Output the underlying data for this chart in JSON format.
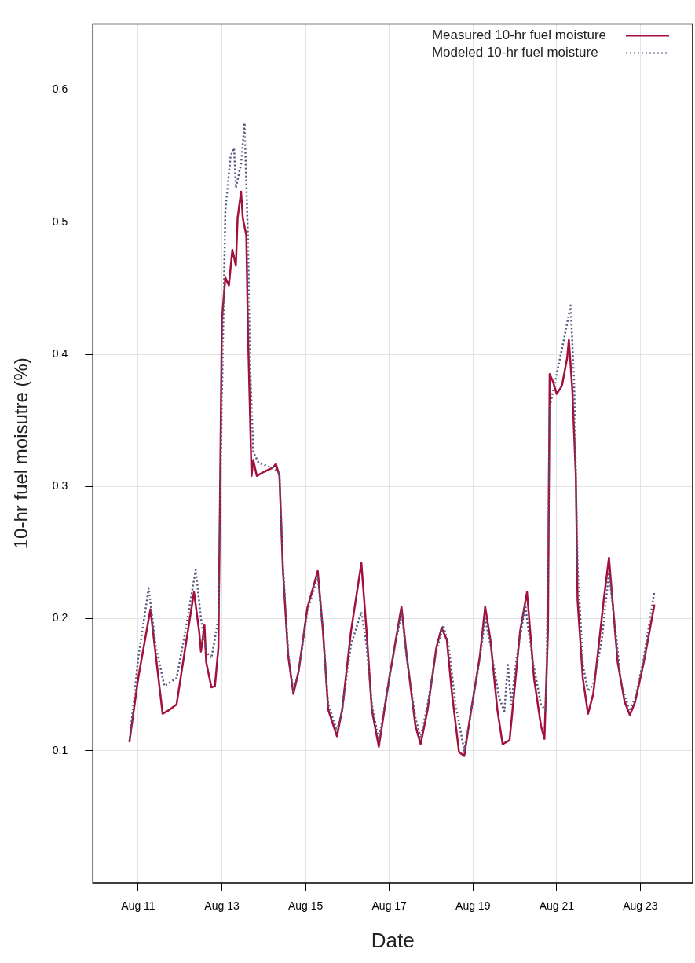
{
  "chart_data": {
    "type": "line",
    "xlabel": "Date",
    "ylabel": "10-hr fuel moisutre (%)",
    "xlim": [
      "--08-09T22:00",
      "--08-24T06:00"
    ],
    "xticks": [
      {
        "value": "--08-11",
        "label": "Aug 11"
      },
      {
        "value": "--08-13",
        "label": "Aug 13"
      },
      {
        "value": "--08-15",
        "label": "Aug 15"
      },
      {
        "value": "--08-17",
        "label": "Aug 17"
      },
      {
        "value": "--08-19",
        "label": "Aug 19"
      },
      {
        "value": "--08-21",
        "label": "Aug 21"
      },
      {
        "value": "--08-23",
        "label": "Aug 23"
      }
    ],
    "ylim": [
      0,
      0.65
    ],
    "yticks": [
      0.1,
      0.2,
      0.3,
      0.4,
      0.5,
      0.6
    ],
    "grid": true,
    "legend": "top right",
    "marker": "none",
    "series": [
      {
        "name": "Measured 10-hr fuel moisture",
        "color": "#a3103c",
        "line_style": "solid",
        "x": [
          "--08-10T19:00",
          "--08-11T00:00",
          "--08-11T07:00",
          "--08-11T14:00",
          "--08-11T18:00",
          "--08-11T22:00",
          "--08-12T03:00",
          "--08-12T08:00",
          "--08-12T11:00",
          "--08-12T12:00",
          "--08-12T14:00",
          "--08-12T15:00",
          "--08-12T18:00",
          "--08-12T20:00",
          "--08-12T22:00",
          "--08-13T00:00",
          "--08-13T02:00",
          "--08-13T04:00",
          "--08-13T06:00",
          "--08-13T08:00",
          "--08-13T09:00",
          "--08-13T11:00",
          "--08-13T12:00",
          "--08-13T14:00",
          "--08-13T15:00",
          "--08-13T17:00",
          "--08-13T18:00",
          "--08-13T20:00",
          "--08-14T00:00",
          "--08-14T05:00",
          "--08-14T07:00",
          "--08-14T09:00",
          "--08-14T11:00",
          "--08-14T14:00",
          "--08-14T17:00",
          "--08-14T20:00",
          "--08-15T01:00",
          "--08-15T07:00",
          "--08-15T10:00",
          "--08-15T13:00",
          "--08-15T18:00",
          "--08-15T21:00",
          "--08-16T02:00",
          "--08-16T08:00",
          "--08-16T11:00",
          "--08-16T14:00",
          "--08-16T18:00",
          "--08-17T00:00",
          "--08-17T07:00",
          "--08-17T10:00",
          "--08-17T15:00",
          "--08-17T18:00",
          "--08-17T22:00",
          "--08-18T03:00",
          "--08-18T06:00",
          "--08-18T09:00",
          "--08-18T12:00",
          "--08-18T16:00",
          "--08-18T19:00",
          "--08-18T23:00",
          "--08-19T04:00",
          "--08-19T07:00",
          "--08-19T10:00",
          "--08-19T14:00",
          "--08-19T17:00",
          "--08-19T21:00",
          "--08-20T00:00",
          "--08-20T03:00",
          "--08-20T07:00",
          "--08-20T11:00",
          "--08-20T15:00",
          "--08-20T17:00",
          "--08-20T19:00",
          "--08-20T20:00",
          "--08-20T22:00",
          "--08-21T00:00",
          "--08-21T03:00",
          "--08-21T06:00",
          "--08-21T07:00",
          "--08-21T09:00",
          "--08-21T11:00",
          "--08-21T12:00",
          "--08-21T15:00",
          "--08-21T18:00",
          "--08-21T21:00",
          "--08-22T00:00",
          "--08-22T03:00",
          "--08-22T06:00",
          "--08-22T08:00",
          "--08-22T11:00",
          "--08-22T15:00",
          "--08-22T18:00",
          "--08-22T21:00",
          "--08-23T02:00",
          "--08-23T08:00"
        ],
        "values": [
          0.107,
          0.155,
          0.207,
          0.128,
          0.131,
          0.135,
          0.178,
          0.22,
          0.19,
          0.175,
          0.195,
          0.167,
          0.148,
          0.149,
          0.178,
          0.426,
          0.458,
          0.452,
          0.479,
          0.467,
          0.503,
          0.523,
          0.503,
          0.49,
          0.414,
          0.308,
          0.32,
          0.308,
          0.311,
          0.314,
          0.317,
          0.308,
          0.237,
          0.172,
          0.143,
          0.16,
          0.208,
          0.236,
          0.19,
          0.131,
          0.111,
          0.131,
          0.19,
          0.242,
          0.19,
          0.131,
          0.103,
          0.155,
          0.209,
          0.172,
          0.119,
          0.105,
          0.131,
          0.178,
          0.193,
          0.184,
          0.143,
          0.099,
          0.096,
          0.131,
          0.172,
          0.209,
          0.184,
          0.131,
          0.105,
          0.108,
          0.149,
          0.19,
          0.22,
          0.155,
          0.119,
          0.109,
          0.19,
          0.385,
          0.379,
          0.37,
          0.376,
          0.397,
          0.411,
          0.373,
          0.308,
          0.214,
          0.155,
          0.128,
          0.143,
          0.178,
          0.214,
          0.246,
          0.214,
          0.167,
          0.137,
          0.127,
          0.137,
          0.167,
          0.21
        ]
      },
      {
        "name": "Modeled 10-hr fuel moisture",
        "color": "#555580",
        "line_style": "dotted",
        "x": [
          "--08-10T19:00",
          "--08-11T00:00",
          "--08-11T06:00",
          "--08-11T10:00",
          "--08-11T15:00",
          "--08-11T22:00",
          "--08-12T03:00",
          "--08-12T09:00",
          "--08-12T12:00",
          "--08-12T15:00",
          "--08-12T18:00",
          "--08-12T22:00",
          "--08-13T00:00",
          "--08-13T02:00",
          "--08-13T05:00",
          "--08-13T07:00",
          "--08-13T08:00",
          "--08-13T11:00",
          "--08-13T13:00",
          "--08-13T15:00",
          "--08-13T16:00",
          "--08-13T18:00",
          "--08-13T21:00",
          "--08-14T05:00",
          "--08-14T09:00",
          "--08-14T11:00",
          "--08-14T14:00",
          "--08-14T17:00",
          "--08-14T20:00",
          "--08-15T01:00",
          "--08-15T07:00",
          "--08-15T10:00",
          "--08-15T13:00",
          "--08-15T18:00",
          "--08-15T21:00",
          "--08-16T02:00",
          "--08-16T08:00",
          "--08-16T11:00",
          "--08-16T14:00",
          "--08-16T18:00",
          "--08-17T00:00",
          "--08-17T07:00",
          "--08-17T10:00",
          "--08-17T15:00",
          "--08-17T18:00",
          "--08-17T22:00",
          "--08-18T03:00",
          "--08-18T07:00",
          "--08-18T10:00",
          "--08-18T14:00",
          "--08-18T19:00",
          "--08-18T23:00",
          "--08-19T04:00",
          "--08-19T07:00",
          "--08-19T10:00",
          "--08-19T15:00",
          "--08-19T18:00",
          "--08-19T20:00",
          "--08-19T22:00",
          "--08-20T01:00",
          "--08-20T06:00",
          "--08-20T10:00",
          "--08-20T15:00",
          "--08-20T18:00",
          "--08-20T20:00",
          "--08-21T00:00",
          "--08-21T04:00",
          "--08-21T08:00",
          "--08-21T10:00",
          "--08-21T12:00",
          "--08-21T15:00",
          "--08-21T18:00",
          "--08-21T21:00",
          "--08-22T02:00",
          "--08-22T06:00",
          "--08-22T09:00",
          "--08-22T13:00",
          "--08-22T18:00",
          "--08-22T21:00",
          "--08-23T02:00",
          "--08-23T08:00"
        ],
        "values": [
          0.107,
          0.17,
          0.223,
          0.18,
          0.149,
          0.155,
          0.19,
          0.237,
          0.2,
          0.175,
          0.17,
          0.2,
          0.367,
          0.509,
          0.55,
          0.556,
          0.526,
          0.544,
          0.575,
          0.485,
          0.397,
          0.326,
          0.318,
          0.314,
          0.31,
          0.24,
          0.175,
          0.145,
          0.16,
          0.205,
          0.232,
          0.19,
          0.135,
          0.115,
          0.131,
          0.18,
          0.205,
          0.18,
          0.135,
          0.108,
          0.155,
          0.205,
          0.17,
          0.125,
          0.11,
          0.135,
          0.175,
          0.195,
          0.18,
          0.135,
          0.1,
          0.13,
          0.17,
          0.2,
          0.18,
          0.14,
          0.13,
          0.165,
          0.135,
          0.17,
          0.21,
          0.17,
          0.135,
          0.13,
          0.36,
          0.385,
          0.41,
          0.437,
          0.38,
          0.24,
          0.165,
          0.145,
          0.15,
          0.185,
          0.235,
          0.2,
          0.15,
          0.13,
          0.14,
          0.17,
          0.22
        ]
      }
    ]
  }
}
